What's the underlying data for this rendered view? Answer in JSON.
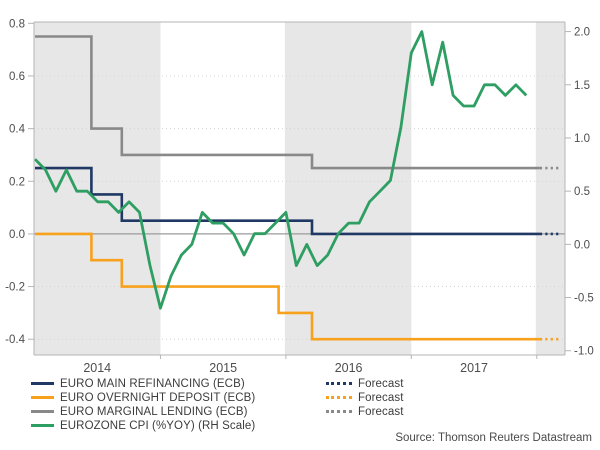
{
  "chart_data": {
    "type": "line",
    "title": "",
    "x_axis": {
      "tick_labels": [
        "2014",
        "2015",
        "2016",
        "2017"
      ],
      "year_boundaries_months": [
        12,
        24,
        36,
        48
      ],
      "domain_months": [
        0,
        50.7
      ]
    },
    "left_axis": {
      "ticks": [
        0.8,
        0.6,
        0.4,
        0.2,
        0.0,
        -0.2,
        -0.4
      ],
      "range": [
        -0.46,
        0.805
      ]
    },
    "right_axis": {
      "ticks": [
        2.0,
        1.5,
        1.0,
        0.5,
        0.0,
        -0.5,
        -1.0
      ],
      "range": [
        -1.04,
        2.09
      ]
    },
    "shaded_bands_months": [
      [
        0,
        12
      ],
      [
        24,
        36
      ],
      [
        48,
        50.7
      ]
    ],
    "gridlines_left": [
      0.6,
      0.4,
      0.2,
      -0.2,
      -0.4
    ],
    "zero_line_left": 0.0,
    "colors": {
      "band": "#e7e7e7",
      "axis": "#b5b5b5",
      "grid": "#d4d4d4",
      "zero_line": "#9b9b9b"
    },
    "series": [
      {
        "name": "EURO MARGINAL LENDING (ECB)",
        "color": "#898989",
        "scale": "left",
        "type": "step",
        "points": [
          [
            0,
            0.75
          ],
          [
            5.4,
            0.75
          ],
          [
            5.4,
            0.4
          ],
          [
            8.3,
            0.4
          ],
          [
            8.3,
            0.3
          ],
          [
            26.5,
            0.3
          ],
          [
            26.5,
            0.25
          ],
          [
            48.3,
            0.25
          ]
        ],
        "forecast_points": [
          [
            48.3,
            0.25
          ],
          [
            50.3,
            0.25
          ]
        ]
      },
      {
        "name": "EURO OVERNIGHT DEPOSIT (ECB)",
        "color": "#f7a11c",
        "scale": "left",
        "type": "step",
        "points": [
          [
            0,
            0.0
          ],
          [
            5.4,
            0.0
          ],
          [
            5.4,
            -0.1
          ],
          [
            8.3,
            -0.1
          ],
          [
            8.3,
            -0.2
          ],
          [
            23.3,
            -0.2
          ],
          [
            23.3,
            -0.3
          ],
          [
            26.5,
            -0.3
          ],
          [
            26.5,
            -0.4
          ],
          [
            48.3,
            -0.4
          ]
        ],
        "forecast_points": [
          [
            48.3,
            -0.4
          ],
          [
            50.3,
            -0.4
          ]
        ]
      },
      {
        "name": "EURO MAIN REFINANCING (ECB)",
        "color": "#1f3864",
        "scale": "left",
        "type": "step",
        "points": [
          [
            0,
            0.25
          ],
          [
            5.4,
            0.25
          ],
          [
            5.4,
            0.15
          ],
          [
            8.3,
            0.15
          ],
          [
            8.3,
            0.05
          ],
          [
            26.5,
            0.05
          ],
          [
            26.5,
            0.0
          ],
          [
            48.3,
            0.0
          ]
        ],
        "forecast_points": [
          [
            48.3,
            0.0
          ],
          [
            50.3,
            0.0
          ]
        ]
      },
      {
        "name": "EUROZONE CPI (%YOY) (RH Scale)",
        "color": "#2e9e62",
        "scale": "right",
        "type": "line",
        "start_month": 0,
        "values": [
          0.8,
          0.7,
          0.5,
          0.7,
          0.5,
          0.5,
          0.4,
          0.4,
          0.3,
          0.4,
          0.3,
          -0.2,
          -0.6,
          -0.3,
          -0.1,
          0.0,
          0.3,
          0.2,
          0.2,
          0.1,
          -0.1,
          0.1,
          0.1,
          0.2,
          0.3,
          -0.2,
          0.0,
          -0.2,
          -0.1,
          0.1,
          0.2,
          0.2,
          0.4,
          0.5,
          0.6,
          1.1,
          1.8,
          2.0,
          1.5,
          1.9,
          1.4,
          1.3,
          1.3,
          1.5,
          1.5,
          1.4,
          1.5,
          1.4
        ]
      }
    ]
  },
  "legend": {
    "items": [
      {
        "label": "EURO MAIN REFINANCING (ECB)",
        "color": "#1f3864"
      },
      {
        "label": "EURO OVERNIGHT DEPOSIT (ECB)",
        "color": "#f7a11c"
      },
      {
        "label": "EURO MARGINAL LENDING (ECB)",
        "color": "#898989"
      },
      {
        "label": "EUROZONE CPI (%YOY) (RH Scale)",
        "color": "#2e9e62"
      }
    ],
    "forecast_items": [
      {
        "label": "Forecast",
        "color": "#1f3864"
      },
      {
        "label": "Forecast",
        "color": "#f7a11c"
      },
      {
        "label": "Forecast",
        "color": "#898989"
      }
    ]
  },
  "source": "Source: Thomson Reuters Datastream"
}
